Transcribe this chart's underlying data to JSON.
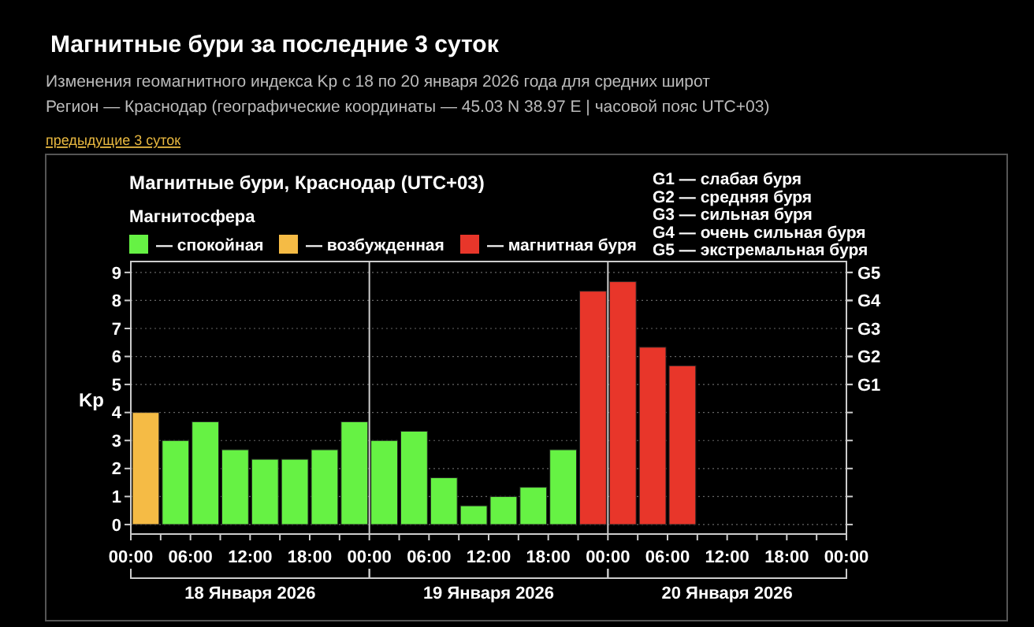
{
  "chart_data": {
    "type": "bar",
    "title": "Магнитные бури за последние 3 суток",
    "subtitle": "Изменения геомагнитного индекса Kp с 18 по 20 января 2026 года для средних широт",
    "ylabel": "Kp",
    "legend_title": "Магнитосфера",
    "legend": "top left",
    "grid": "y",
    "x": [
      "2026-01-18T01:30",
      "2026-01-18T04:30",
      "2026-01-18T07:30",
      "2026-01-18T10:30",
      "2026-01-18T13:30",
      "2026-01-18T16:30",
      "2026-01-18T19:30",
      "2026-01-18T22:30",
      "2026-01-19T01:30",
      "2026-01-19T04:30",
      "2026-01-19T07:30",
      "2026-01-19T10:30",
      "2026-01-19T13:30",
      "2026-01-19T16:30",
      "2026-01-19T19:30",
      "2026-01-19T22:30",
      "2026-01-20T01:30",
      "2026-01-20T04:30",
      "2026-01-20T07:30"
    ],
    "xlim": [
      "2026-01-18T00:00",
      "2026-01-21T00:00"
    ],
    "xticks": [
      {
        "value": "2026-01-18T00:00",
        "label": "00:00"
      },
      {
        "value": "2026-01-18T03:00",
        "label": null
      },
      {
        "value": "2026-01-18T06:00",
        "label": "06:00"
      },
      {
        "value": "2026-01-18T09:00",
        "label": null
      },
      {
        "value": "2026-01-18T12:00",
        "label": "12:00"
      },
      {
        "value": "2026-01-18T15:00",
        "label": null
      },
      {
        "value": "2026-01-18T18:00",
        "label": "18:00"
      },
      {
        "value": "2026-01-18T21:00",
        "label": null
      },
      {
        "value": "2026-01-19T00:00",
        "label": "00:00"
      },
      {
        "value": "2026-01-19T03:00",
        "label": null
      },
      {
        "value": "2026-01-19T06:00",
        "label": "06:00"
      },
      {
        "value": "2026-01-19T09:00",
        "label": null
      },
      {
        "value": "2026-01-19T12:00",
        "label": "12:00"
      },
      {
        "value": "2026-01-19T15:00",
        "label": null
      },
      {
        "value": "2026-01-19T18:00",
        "label": "18:00"
      },
      {
        "value": "2026-01-19T21:00",
        "label": null
      },
      {
        "value": "2026-01-20T00:00",
        "label": "00:00"
      },
      {
        "value": "2026-01-20T03:00",
        "label": null
      },
      {
        "value": "2026-01-20T06:00",
        "label": "06:00"
      },
      {
        "value": "2026-01-20T09:00",
        "label": null
      },
      {
        "value": "2026-01-20T12:00",
        "label": "12:00"
      },
      {
        "value": "2026-01-20T15:00",
        "label": null
      },
      {
        "value": "2026-01-20T18:00",
        "label": "18:00"
      },
      {
        "value": "2026-01-20T21:00",
        "label": null
      },
      {
        "value": "2026-01-21T00:00",
        "label": "00:00"
      }
    ],
    "ylim": [
      -0.34,
      9.39
    ],
    "yticks": [
      0,
      1,
      2,
      3,
      4,
      5,
      6,
      7,
      8,
      9
    ],
    "series": [
      {
        "name": "— спокойная",
        "color": "#66f244",
        "values": [
          null,
          3,
          3.67,
          2.67,
          2.33,
          2.33,
          2.67,
          3.67,
          3,
          3.33,
          1.67,
          0.67,
          1,
          1.33,
          2.67,
          null,
          null,
          null,
          null
        ]
      },
      {
        "name": "— возбужденная",
        "color": "#f5bb45",
        "values": [
          4,
          null,
          null,
          null,
          null,
          null,
          null,
          null,
          null,
          null,
          null,
          null,
          null,
          null,
          null,
          null,
          null,
          null,
          null
        ]
      },
      {
        "name": "— магнитная буря",
        "color": "#e8362a",
        "values": [
          null,
          null,
          null,
          null,
          null,
          null,
          null,
          null,
          null,
          null,
          null,
          null,
          null,
          null,
          null,
          8.33,
          8.67,
          6.33,
          5.67
        ]
      }
    ],
    "ref_lines": [
      {
        "axis": "x",
        "value": "2026-01-19T00:00",
        "color": "#cccccc"
      },
      {
        "axis": "x",
        "value": "2026-01-20T00:00",
        "color": "#cccccc"
      },
      {
        "axis": "y",
        "value": 5,
        "label": "G1"
      },
      {
        "axis": "y",
        "value": 6,
        "label": "G2"
      },
      {
        "axis": "y",
        "value": 7,
        "label": "G3"
      },
      {
        "axis": "y",
        "value": 8,
        "label": "G4"
      },
      {
        "axis": "y",
        "value": 9,
        "label": "G5"
      }
    ],
    "annotations": [
      "Регион — Краснодар (географические координаты — 45.03 N 38.97 E | часовой пояс UTC+03)",
      "предыдущие 3 суток",
      "Магнитные бури, Краснодар (UTC+03)",
      "G1 — слабая буря",
      "G2 — средняя буря",
      "G3 — сильная буря",
      "G4 — очень сильная буря",
      "G5 — экстремальная буря",
      "18 Января 2026",
      "19 Января 2026",
      "20 Января 2026"
    ]
  }
}
